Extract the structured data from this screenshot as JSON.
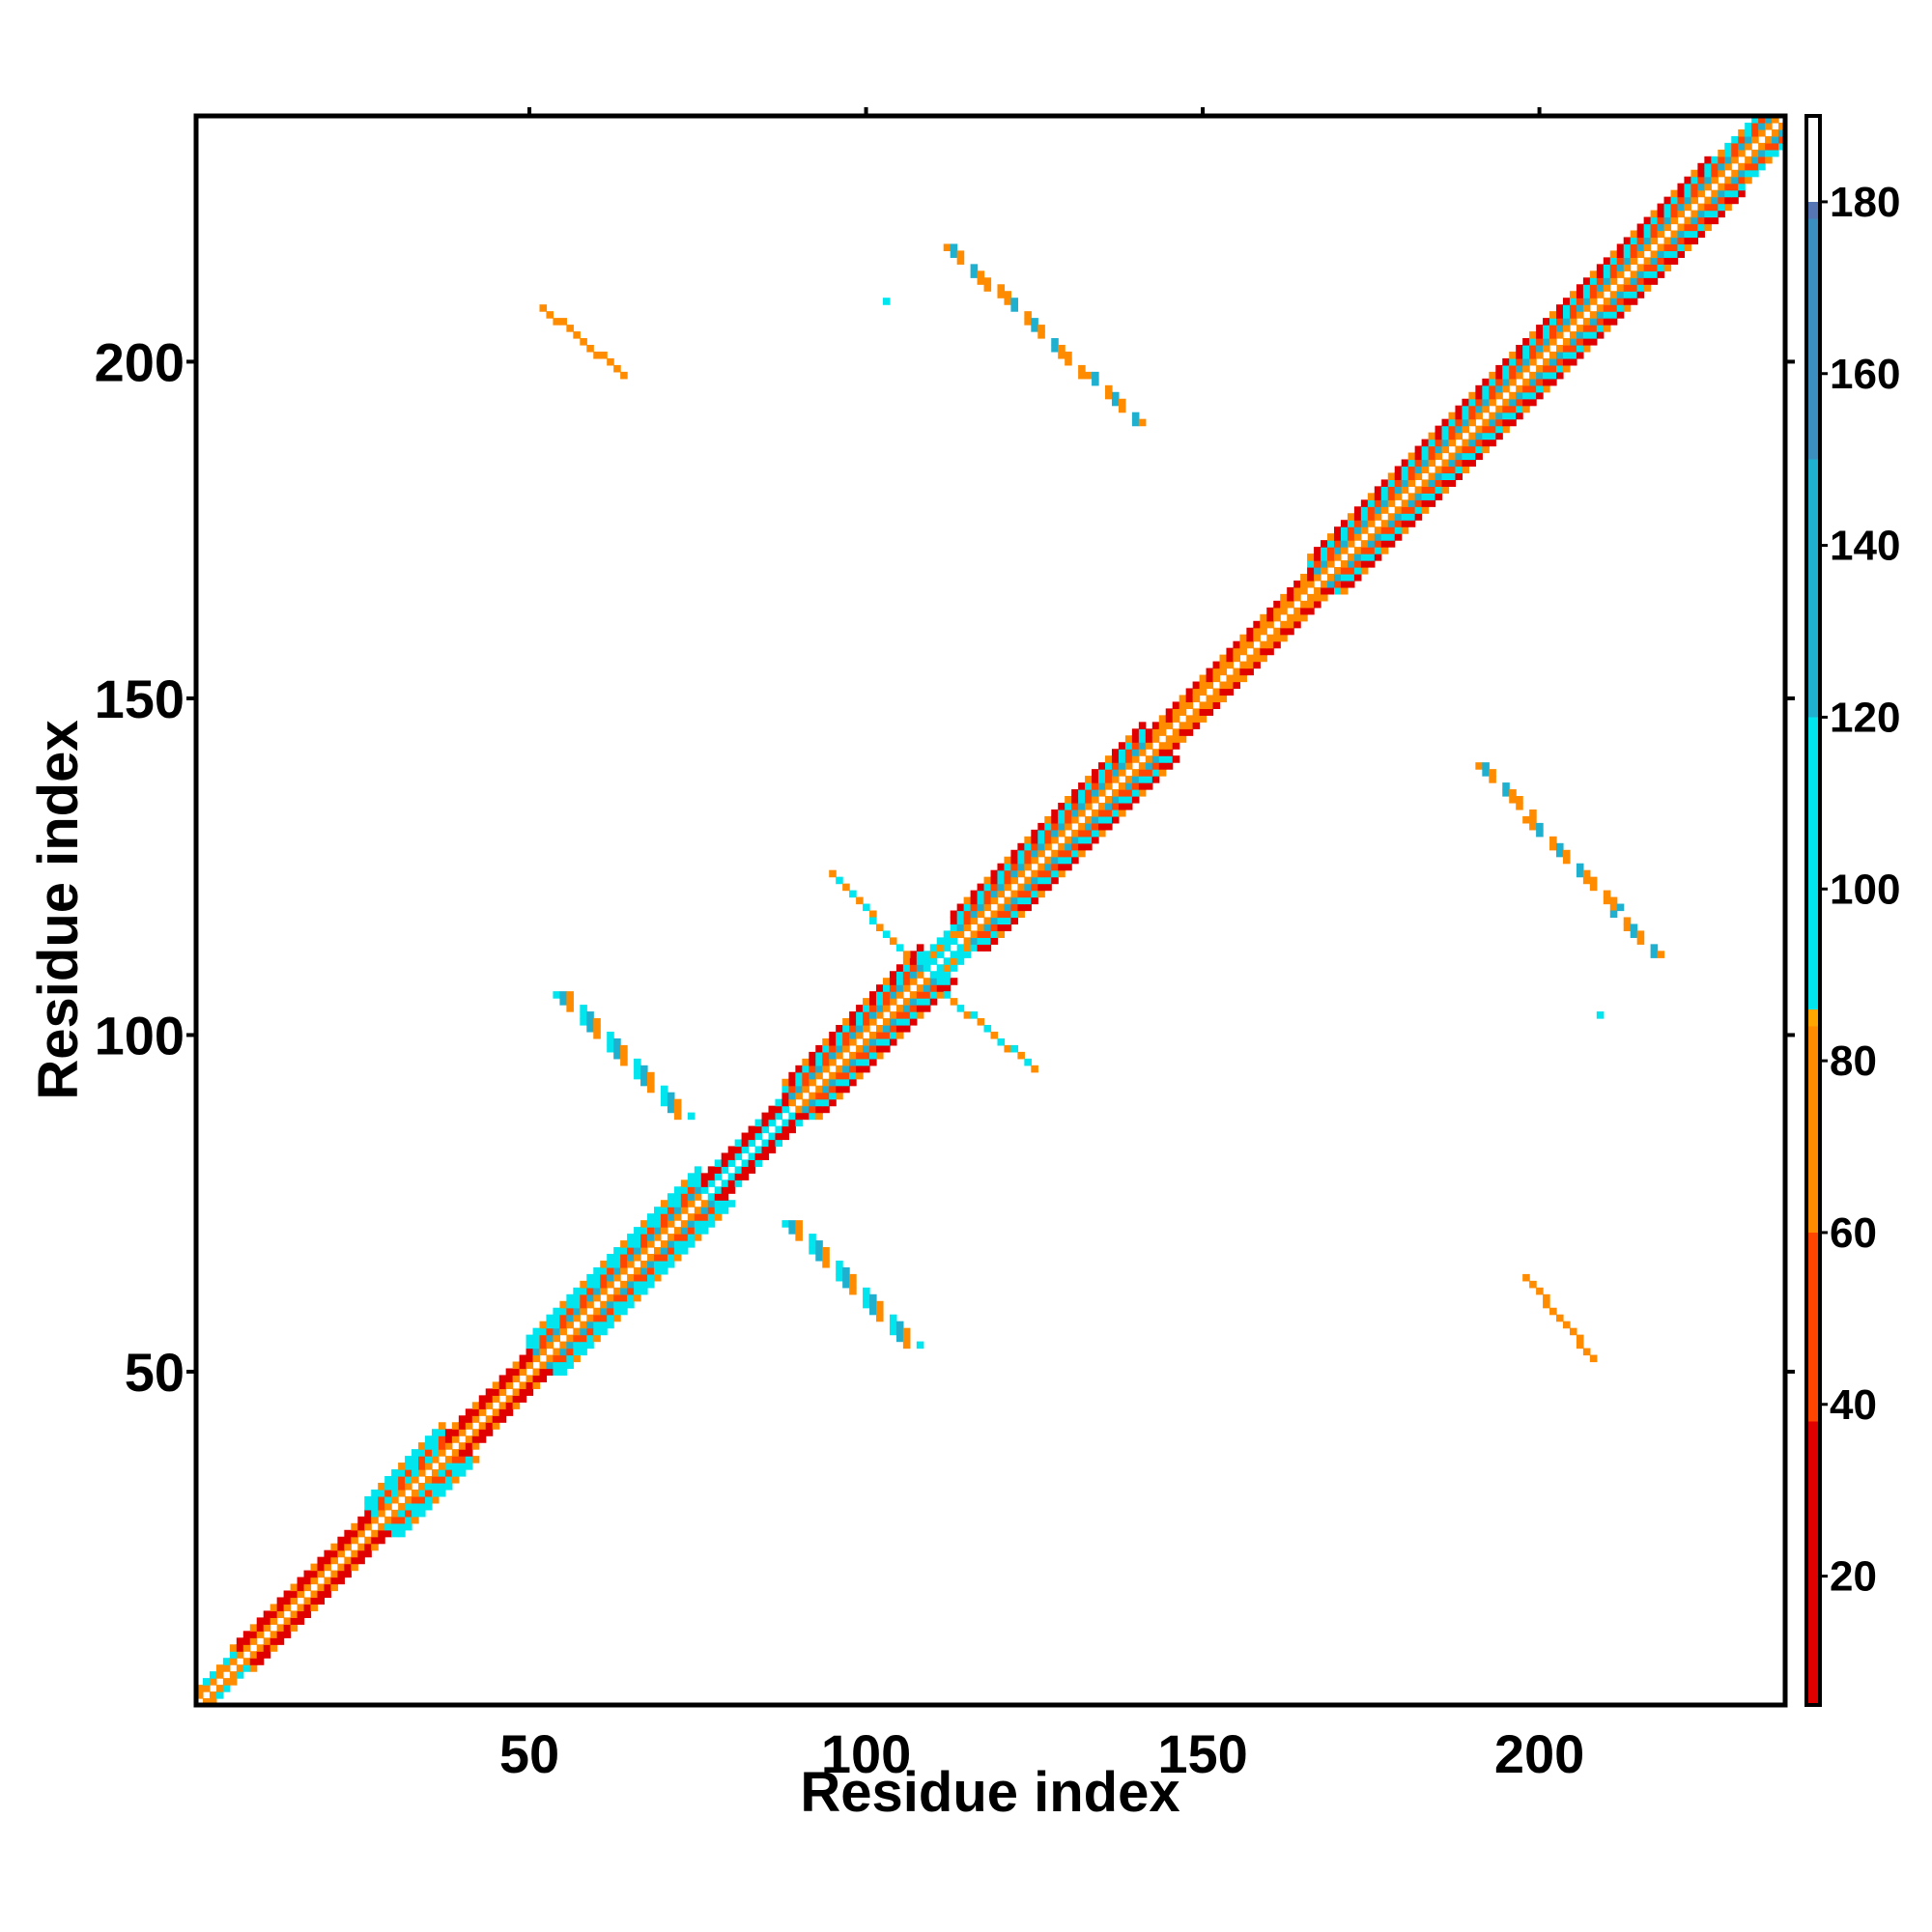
{
  "chart_data": {
    "type": "heatmap",
    "title": "",
    "xlabel": "Residue index",
    "ylabel": "Residue index",
    "xlim": [
      1,
      236
    ],
    "ylim": [
      1,
      236
    ],
    "x_ticks": [
      50,
      100,
      150,
      200
    ],
    "y_ticks": [
      50,
      100,
      150,
      200
    ],
    "x_tick_labels": [
      "50",
      "100",
      "150",
      "200"
    ],
    "y_tick_labels": [
      "50",
      "100",
      "150",
      "200"
    ],
    "colorbar": {
      "range": [
        5,
        190
      ],
      "ticks": [
        20,
        40,
        60,
        80,
        100,
        120,
        140,
        160,
        180
      ],
      "tick_labels": [
        "20",
        "40",
        "60",
        "80",
        "100",
        "120",
        "140",
        "160",
        "180"
      ],
      "stops": [
        {
          "value": 5,
          "color": "#e00000"
        },
        {
          "value": 38,
          "color": "#ff4500"
        },
        {
          "value": 60,
          "color": "#ff8c00"
        },
        {
          "value": 84,
          "color": "#ffa500"
        },
        {
          "value": 86,
          "color": "#00e5ee"
        },
        {
          "value": 120,
          "color": "#1fb0d0"
        },
        {
          "value": 150,
          "color": "#3a8fc0"
        },
        {
          "value": 178,
          "color": "#5575b5"
        },
        {
          "value": 180,
          "color": "#ffffff"
        },
        {
          "value": 190,
          "color": "#ffffff"
        }
      ]
    },
    "diagonal_bands": [
      {
        "offset": 0,
        "value": 190
      },
      {
        "offset": 1,
        "value": 70
      },
      {
        "offset": 2,
        "value": 110
      },
      {
        "offset": 3,
        "value": 50
      },
      {
        "offset": 4,
        "value": 100
      }
    ],
    "diagonal_segments": [
      {
        "from": 1,
        "to": 6,
        "offsets": [
          1,
          2
        ],
        "values": [
          70,
          110
        ]
      },
      {
        "from": 6,
        "to": 26,
        "offsets": [
          1,
          2,
          3
        ],
        "values": [
          60,
          25,
          20
        ]
      },
      {
        "from": 26,
        "to": 37,
        "offsets": [
          1,
          2,
          3,
          4,
          5
        ],
        "values": [
          75,
          110,
          55,
          100,
          95
        ]
      },
      {
        "from": 37,
        "to": 50,
        "offsets": [
          1,
          2,
          3
        ],
        "values": [
          60,
          35,
          20
        ]
      },
      {
        "from": 50,
        "to": 75,
        "offsets": [
          1,
          2,
          3,
          4,
          5
        ],
        "values": [
          70,
          120,
          50,
          100,
          95
        ]
      },
      {
        "from": 75,
        "to": 88,
        "offsets": [
          1,
          2,
          3
        ],
        "values": [
          110,
          30,
          20
        ]
      },
      {
        "from": 88,
        "to": 108,
        "offsets": [
          1,
          2,
          3,
          4,
          5
        ],
        "values": [
          75,
          125,
          50,
          100,
          30
        ]
      },
      {
        "from": 108,
        "to": 113,
        "offsets": [
          1,
          2,
          3
        ],
        "values": [
          100,
          70,
          110
        ]
      },
      {
        "from": 113,
        "to": 141,
        "offsets": [
          1,
          2,
          3,
          4,
          5
        ],
        "values": [
          70,
          125,
          50,
          100,
          30
        ]
      },
      {
        "from": 141,
        "to": 166,
        "offsets": [
          1,
          2,
          3
        ],
        "values": [
          60,
          75,
          30
        ]
      },
      {
        "from": 166,
        "to": 225,
        "offsets": [
          1,
          2,
          3,
          4,
          5
        ],
        "values": [
          70,
          125,
          50,
          100,
          35
        ]
      },
      {
        "from": 225,
        "to": 236,
        "offsets": [
          1,
          2,
          3,
          4
        ],
        "values": [
          70,
          120,
          50,
          90
        ]
      }
    ],
    "off_diagonal_contacts": [
      {
        "name": "sheet-a-left",
        "start": [
          54,
          106
        ],
        "end": [
          72,
          88
        ],
        "width": 3,
        "values": [
          110,
          125,
          75,
          100
        ]
      },
      {
        "name": "sheet-a-right",
        "start": [
          88,
          72
        ],
        "end": [
          106,
          54
        ],
        "width": 3,
        "values": [
          110,
          125,
          75,
          100
        ]
      },
      {
        "name": "sheet-b-left",
        "start": [
          95,
          124
        ],
        "end": [
          106,
          112
        ],
        "width": 1,
        "values": [
          70,
          100
        ]
      },
      {
        "name": "sheet-b-right",
        "start": [
          112,
          106
        ],
        "end": [
          125,
          95
        ],
        "width": 1,
        "values": [
          100,
          70
        ]
      },
      {
        "name": "sheet-c-top",
        "start": [
          112,
          217
        ],
        "end": [
          140,
          191
        ],
        "width": 2,
        "values": [
          70,
          125,
          60
        ]
      },
      {
        "name": "sheet-c-bottom",
        "start": [
          191,
          140
        ],
        "end": [
          217,
          112
        ],
        "width": 2,
        "values": [
          70,
          125,
          60
        ]
      },
      {
        "name": "sheet-d-top",
        "start": [
          52,
          208
        ],
        "end": [
          64,
          198
        ],
        "width": 1,
        "values": [
          70,
          60
        ]
      },
      {
        "name": "sheet-d-bottom",
        "start": [
          198,
          64
        ],
        "end": [
          208,
          52
        ],
        "width": 1,
        "values": [
          70,
          60
        ]
      },
      {
        "name": "isolated-1",
        "start": [
          103,
          209
        ],
        "end": [
          103,
          209
        ],
        "width": 1,
        "values": [
          100
        ]
      },
      {
        "name": "isolated-2",
        "start": [
          209,
          103
        ],
        "end": [
          209,
          103
        ],
        "width": 1,
        "values": [
          100
        ]
      }
    ]
  }
}
